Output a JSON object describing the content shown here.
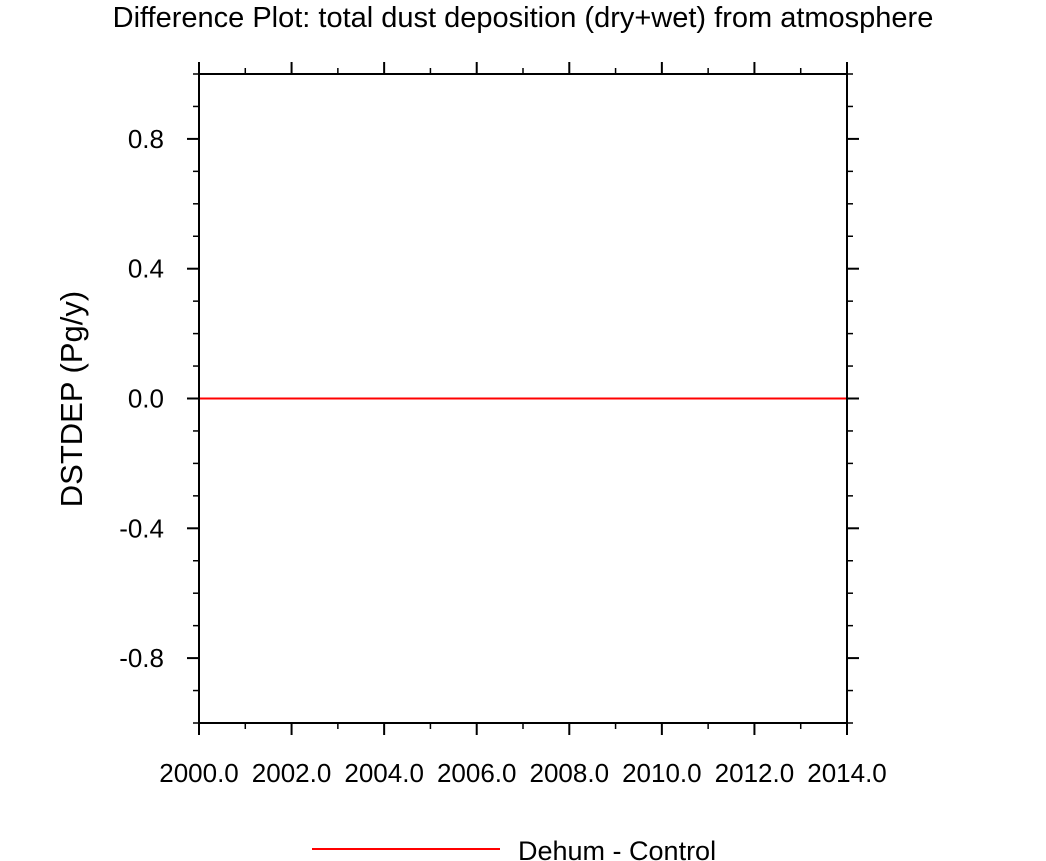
{
  "chart_data": {
    "type": "line",
    "title": "Difference Plot: total dust deposition (dry+wet) from atmosphere",
    "ylabel": "DSTDEP  (Pg/y)",
    "xlabel": "",
    "xlim": [
      2000,
      2014
    ],
    "ylim": [
      -1,
      1
    ],
    "x_ticks": [
      2000,
      2002,
      2004,
      2006,
      2008,
      2010,
      2012,
      2014
    ],
    "x_tick_labels": [
      "2000.0",
      "2002.0",
      "2004.0",
      "2006.0",
      "2008.0",
      "2010.0",
      "2012.0",
      "2014.0"
    ],
    "y_ticks": [
      0.8,
      0.4,
      0.0,
      -0.4,
      -0.8
    ],
    "y_tick_labels": [
      "0.8",
      "0.4",
      "0.0",
      "-0.4",
      "-0.8"
    ],
    "x_minor_step": 1,
    "y_minor_step": 0.1,
    "grid": false,
    "legend_position": "bottom",
    "series": [
      {
        "name": "Dehum - Control",
        "color": "#ff0000",
        "x": [
          2000,
          2014
        ],
        "y": [
          0,
          0
        ]
      }
    ]
  }
}
